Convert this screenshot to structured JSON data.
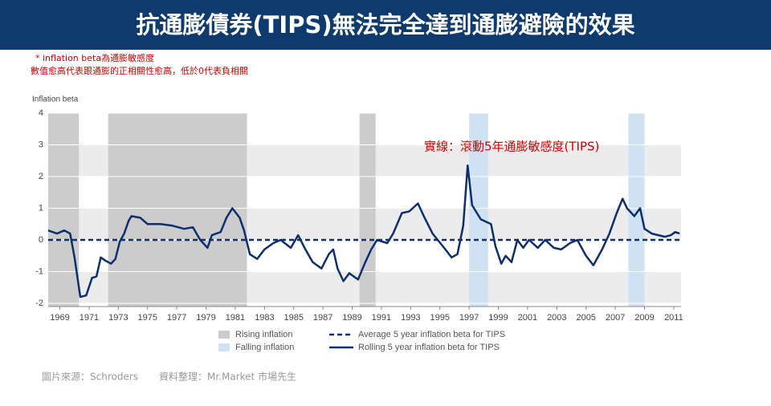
{
  "header": {
    "title": "抗通膨債券(TIPS)無法完全達到通膨避險的效果"
  },
  "notes": [
    "* inflation  beta為通膨敏感度",
    "數值愈高代表跟通膨的正相關性愈高，低於0代表負相關"
  ],
  "source": [
    "圖片來源：Schroders",
    "資料整理：Mr.Market 市場先生"
  ],
  "chart_data": {
    "type": "line",
    "ylabel": "Inflation beta",
    "annotation": "實線：滾動5年通膨敏感度(TIPS)",
    "xlim": [
      1968.2,
      2011.5
    ],
    "ylim": [
      -2.1,
      4
    ],
    "xticks": [
      1969,
      1971,
      1973,
      1975,
      1977,
      1979,
      1981,
      1983,
      1985,
      1987,
      1989,
      1991,
      1993,
      1995,
      1997,
      1999,
      2001,
      2003,
      2005,
      2007,
      2009,
      2011
    ],
    "yticks": [
      -2,
      -1,
      0,
      1,
      2,
      3,
      4
    ],
    "shaded_regions": [
      {
        "name": "Rising inflation",
        "color": "#cccccc",
        "ranges": [
          [
            1968.2,
            1970.3
          ],
          [
            1972.3,
            1981.8
          ],
          [
            1989.5,
            1990.6
          ]
        ]
      },
      {
        "name": "Falling inflation",
        "color": "#cfe2f3",
        "ranges": [
          [
            1997.0,
            1998.3
          ],
          [
            2007.9,
            2009.0
          ]
        ]
      }
    ],
    "reference_lines": [
      {
        "name": "Average 5 year inflation beta for TIPS",
        "value": 0,
        "color": "#0d2f6e"
      }
    ],
    "series": [
      {
        "name": "Rolling 5 year inflation beta for TIPS",
        "color": "#0d2f6e",
        "x": [
          1968.2,
          1968.8,
          1969.3,
          1969.7,
          1970.0,
          1970.4,
          1970.8,
          1971.2,
          1971.5,
          1971.8,
          1972.1,
          1972.5,
          1972.8,
          1973.1,
          1973.4,
          1973.7,
          1973.9,
          1974.5,
          1975.0,
          1975.9,
          1976.7,
          1977.5,
          1978.1,
          1978.6,
          1979.1,
          1979.4,
          1980.0,
          1980.4,
          1980.8,
          1981.3,
          1981.6,
          1982.0,
          1982.5,
          1983.0,
          1983.6,
          1984.1,
          1984.8,
          1985.3,
          1985.8,
          1986.3,
          1986.9,
          1987.4,
          1987.7,
          1988.0,
          1988.4,
          1988.8,
          1989.4,
          1989.9,
          1990.3,
          1990.7,
          1991.4,
          1991.8,
          1992.4,
          1992.9,
          1993.5,
          1993.9,
          1994.5,
          1995.2,
          1995.8,
          1996.2,
          1996.6,
          1996.9,
          1997.2,
          1997.8,
          1998.5,
          1998.8,
          1999.2,
          1999.5,
          1999.9,
          2000.3,
          2000.7,
          2001.1,
          2001.7,
          2002.2,
          2002.8,
          2003.3,
          2003.9,
          2004.4,
          2005.0,
          2005.5,
          2006.1,
          2006.6,
          2007.1,
          2007.5,
          2007.8,
          2008.3,
          2008.7,
          2009.0,
          2009.5,
          2010.4,
          2010.8,
          2011.1,
          2011.4
        ],
        "values": [
          0.3,
          0.2,
          0.3,
          0.2,
          -0.55,
          -1.8,
          -1.75,
          -1.2,
          -1.15,
          -0.55,
          -0.65,
          -0.75,
          -0.6,
          -0.05,
          0.2,
          0.6,
          0.75,
          0.7,
          0.5,
          0.5,
          0.45,
          0.35,
          0.4,
          0,
          -0.25,
          0.15,
          0.25,
          0.7,
          1.0,
          0.7,
          0.3,
          -0.45,
          -0.6,
          -0.3,
          -0.1,
          0,
          -0.25,
          0.15,
          -0.3,
          -0.7,
          -0.9,
          -0.45,
          -0.3,
          -0.9,
          -1.3,
          -1.05,
          -1.25,
          -0.7,
          -0.3,
          0,
          -0.1,
          0.2,
          0.85,
          0.9,
          1.15,
          0.75,
          0.2,
          -0.2,
          -0.55,
          -0.45,
          0.45,
          2.35,
          1.1,
          0.65,
          0.5,
          -0.2,
          -0.75,
          -0.5,
          -0.7,
          0,
          -0.25,
          0,
          -0.25,
          0,
          -0.25,
          -0.3,
          -0.1,
          0,
          -0.5,
          -0.8,
          -0.3,
          0.2,
          0.85,
          1.3,
          1.0,
          0.75,
          1.0,
          0.35,
          0.2,
          0.1,
          0.15,
          0.25,
          0.2
        ]
      }
    ]
  }
}
